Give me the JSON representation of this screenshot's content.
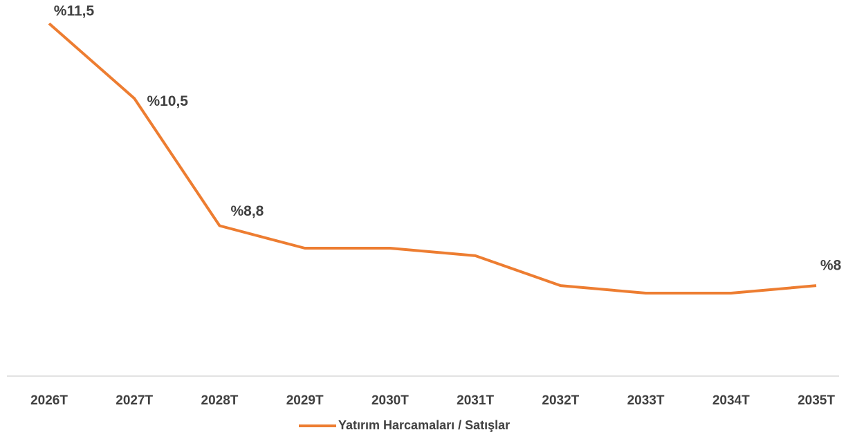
{
  "chart_data": {
    "type": "line",
    "categories": [
      "2026T",
      "2027T",
      "2028T",
      "2029T",
      "2030T",
      "2031T",
      "2032T",
      "2033T",
      "2034T",
      "2035T"
    ],
    "series": [
      {
        "name": "Yatırım Harcamaları / Satışlar",
        "color": "#ed7d31",
        "values": [
          11.5,
          10.5,
          8.8,
          8.5,
          8.5,
          8.4,
          8.0,
          7.9,
          7.9,
          8.0
        ],
        "value_labels": [
          "%11,5",
          "%10,5",
          "%8,8",
          null,
          null,
          null,
          null,
          null,
          null,
          "%8"
        ]
      }
    ],
    "legend": "bottom"
  }
}
